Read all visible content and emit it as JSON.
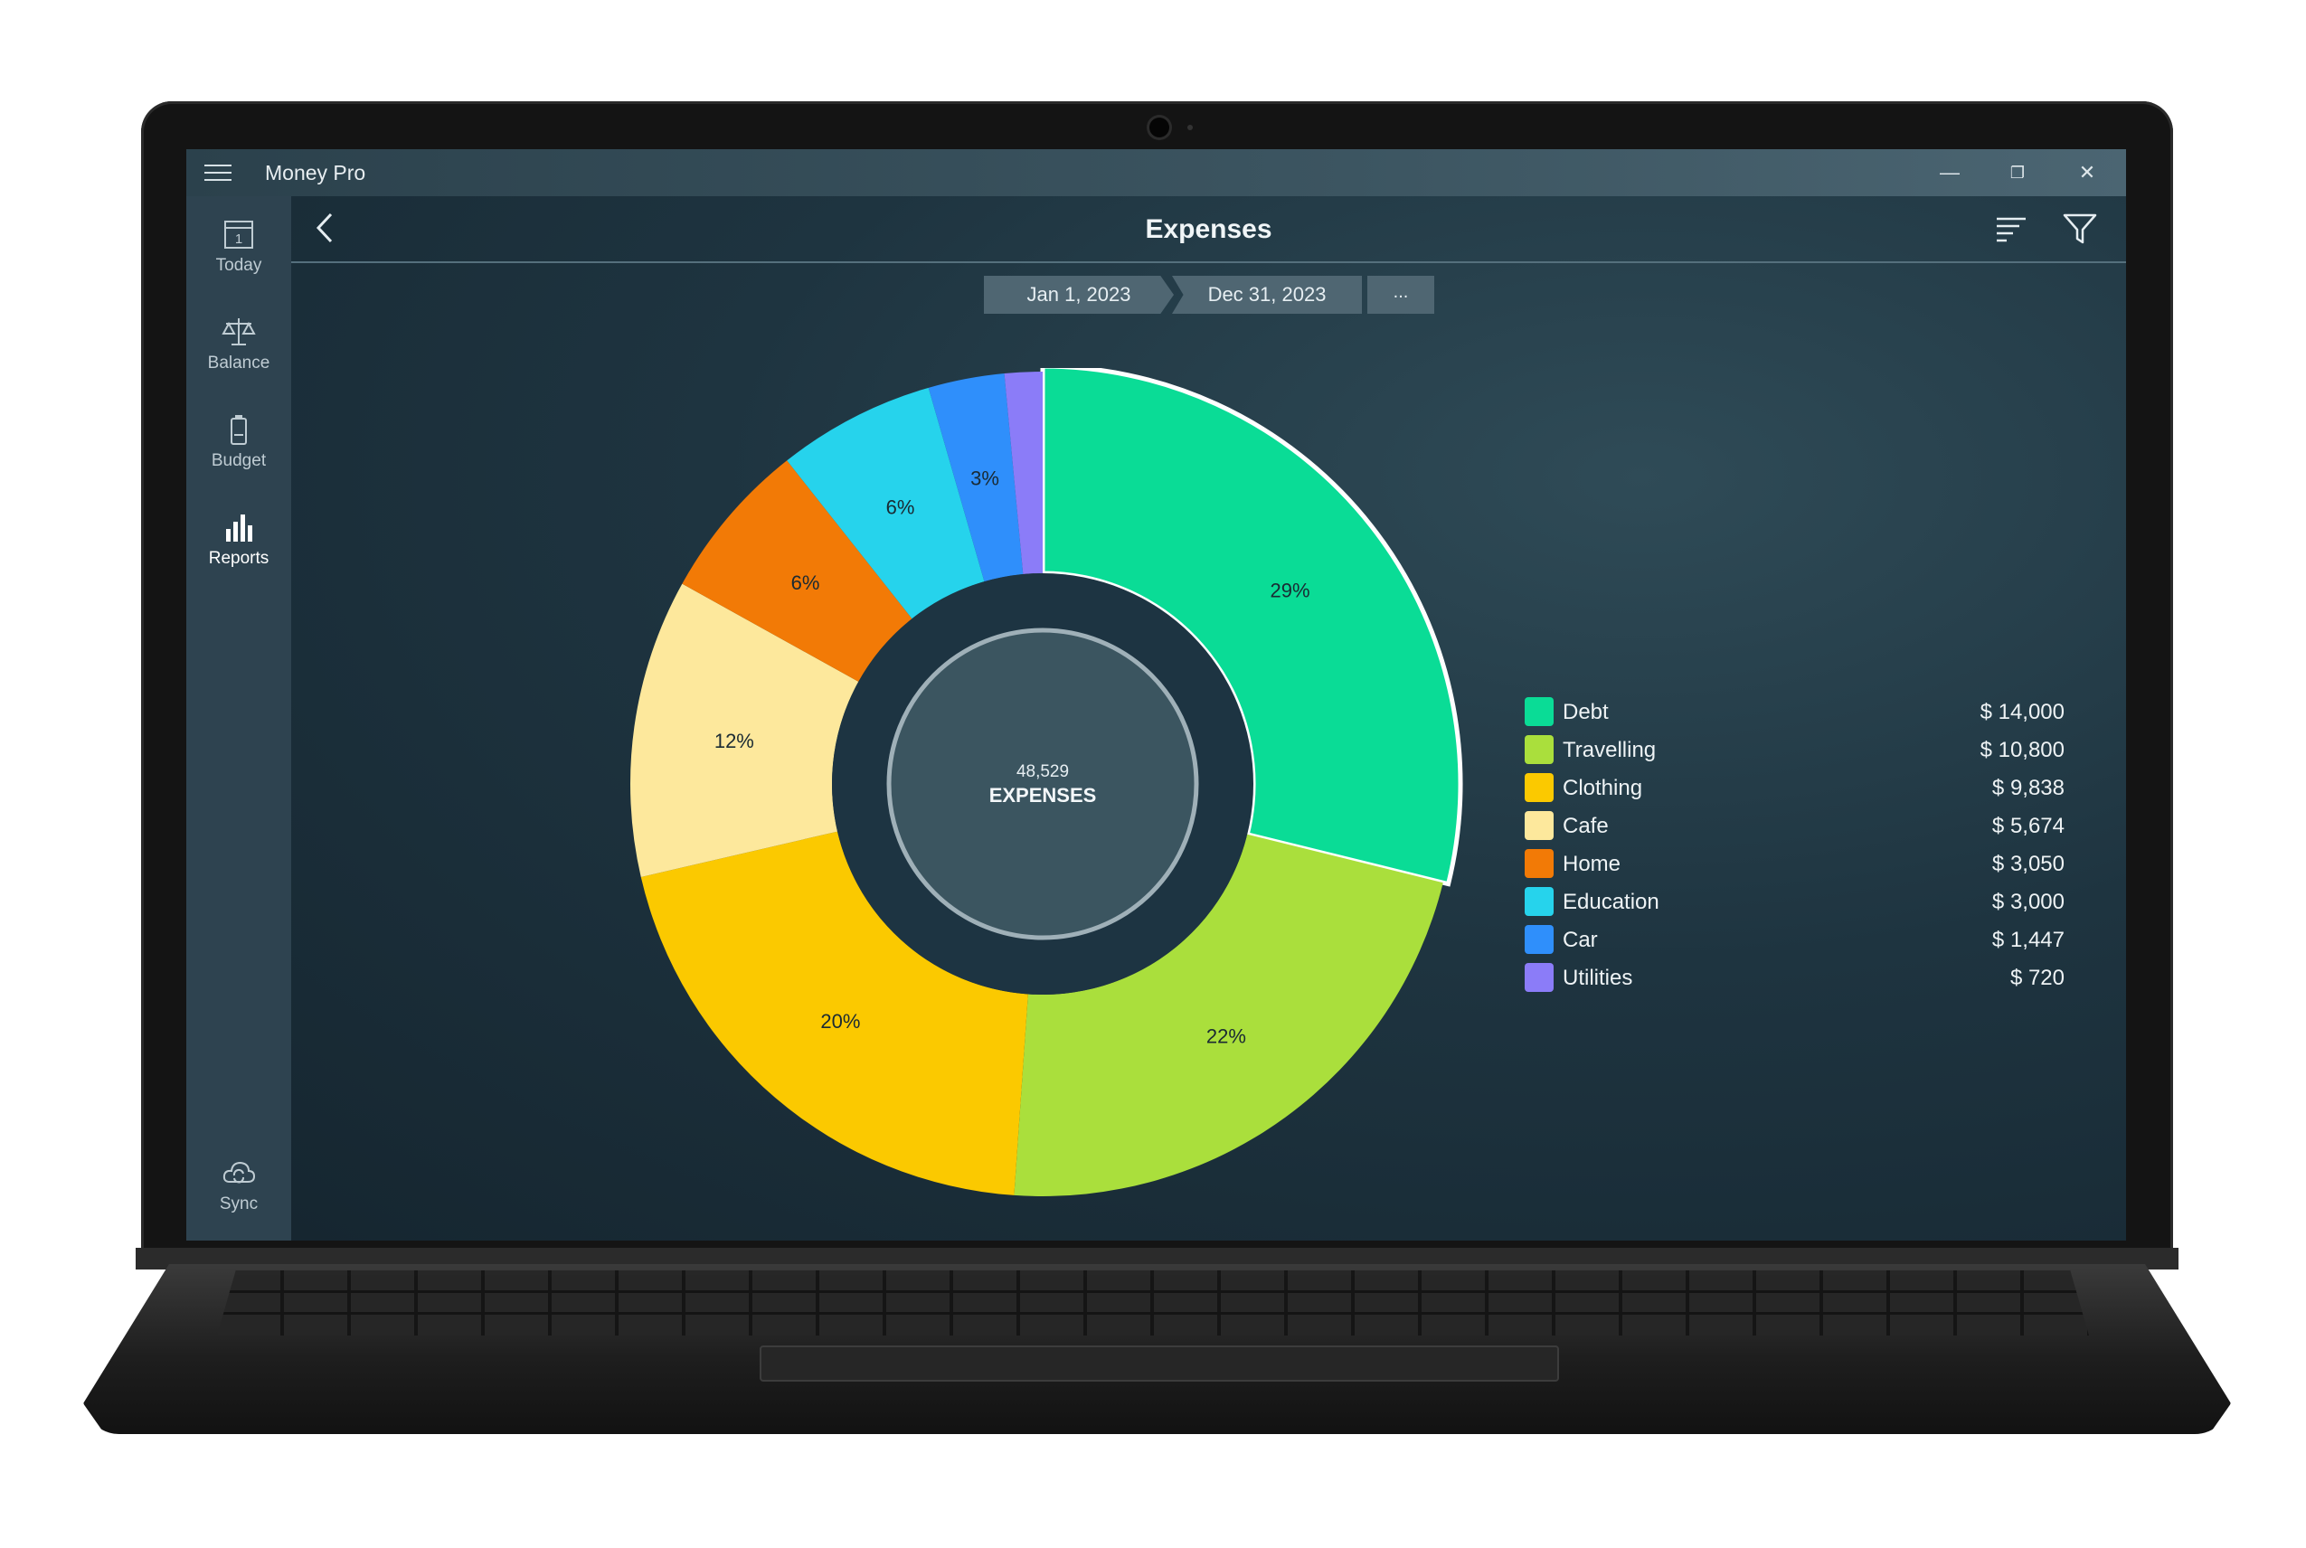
{
  "window": {
    "app_title": "Money Pro",
    "minimize_glyph": "—",
    "maximize_glyph": "❐",
    "close_glyph": "✕"
  },
  "sidebar": {
    "items": [
      {
        "label": "Today",
        "icon": "calendar-icon",
        "calendar_day": "1"
      },
      {
        "label": "Balance",
        "icon": "scale-icon"
      },
      {
        "label": "Budget",
        "icon": "battery-icon"
      },
      {
        "label": "Reports",
        "icon": "bar-chart-icon",
        "active": true
      }
    ],
    "sync": {
      "label": "Sync",
      "icon": "cloud-sync-icon"
    }
  },
  "header": {
    "title": "Expenses",
    "back_icon": "chevron-left-icon",
    "sort_icon": "sort-bars-icon",
    "filter_icon": "filter-icon"
  },
  "date_range": {
    "start": "Jan 1, 2023",
    "end": "Dec 31, 2023",
    "more": "..."
  },
  "summary": {
    "total": "48,529",
    "label": "EXPENSES"
  },
  "colors": {
    "Debt": "#0adc96",
    "Travelling": "#aadf3c",
    "Clothing": "#fbc900",
    "Cafe": "#fde89c",
    "Home": "#f27a06",
    "Education": "#26d3ec",
    "Car": "#2f8ffb",
    "Utilities": "#8b7cf8"
  },
  "chart_data": {
    "type": "pie",
    "categories": [
      "Debt",
      "Travelling",
      "Clothing",
      "Cafe",
      "Home",
      "Education",
      "Car",
      "Utilities"
    ],
    "values": [
      14000,
      10800,
      9838,
      5674,
      3050,
      3000,
      1447,
      720
    ],
    "percent_labels": [
      "29%",
      "22%",
      "20%",
      "12%",
      "6%",
      "6%",
      "3%",
      ""
    ],
    "amount_labels": [
      "$ 14,000",
      "$ 10,800",
      "$ 9,838",
      "$ 5,674",
      "$ 3,050",
      "$ 3,000",
      "$ 1,447",
      "$ 720"
    ],
    "highlighted": "Debt",
    "legend_position": "right"
  }
}
